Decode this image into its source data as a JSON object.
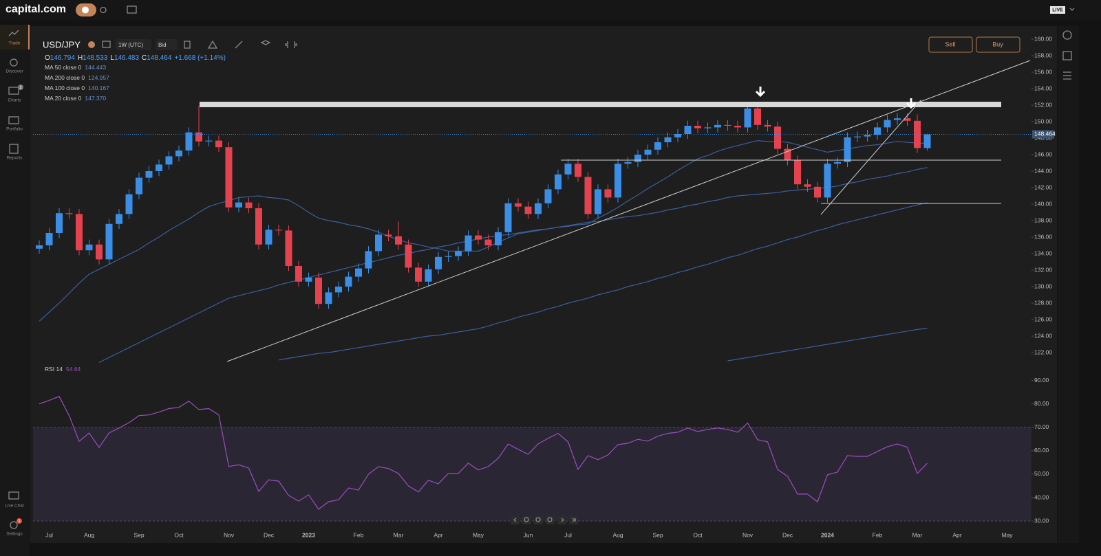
{
  "ui": {
    "logo": "capital.com",
    "live": "LIVE",
    "nav": [
      "Trade",
      "Discover",
      "Charts",
      "Portfolio",
      "Reports",
      "Live Chat",
      "Settings"
    ],
    "charts_badge": 2,
    "settings_badge": 1,
    "symbol": "USD/JPY",
    "interval": "1W (UTC)",
    "price_type": "Bid",
    "sell": "Sell",
    "buy": "Buy"
  },
  "chart_data": {
    "type": "candlestick",
    "categories": [
      null,
      "Jul",
      null,
      null,
      null,
      "Aug",
      null,
      null,
      null,
      null,
      "Sep",
      null,
      null,
      null,
      "Oct",
      null,
      null,
      null,
      null,
      "Nov",
      null,
      null,
      null,
      "Dec",
      null,
      null,
      null,
      "2023",
      null,
      null,
      null,
      null,
      "Feb",
      null,
      null,
      null,
      "Mar",
      null,
      null,
      null,
      "Apr",
      null,
      null,
      null,
      "May",
      null,
      null,
      null,
      null,
      "Jun",
      null,
      null,
      null,
      "Jul",
      null,
      null,
      null,
      null,
      "Aug",
      null,
      null,
      null,
      "Sep",
      null,
      null,
      null,
      "Oct",
      null,
      null,
      null,
      null,
      "Nov",
      null,
      null,
      null,
      "Dec",
      null,
      null,
      null,
      "2024",
      null,
      null,
      null,
      null,
      "Feb",
      null,
      null,
      null,
      "Mar",
      null,
      null,
      null,
      "Apr",
      null,
      null,
      null,
      null,
      "May"
    ],
    "open": [
      134.6,
      135.0,
      136.5,
      138.9,
      138.8,
      134.4,
      135.1,
      133.3,
      137.6,
      138.8,
      141.2,
      143.2,
      144.0,
      144.8,
      145.8,
      146.5,
      148.7,
      147.6,
      147.7,
      146.9,
      139.6,
      140.2,
      139.5,
      135.1,
      136.9,
      136.8,
      132.5,
      130.6,
      131.1,
      127.9,
      129.3,
      130.0,
      131.2,
      132.2,
      134.3,
      136.3,
      136.1,
      135.1,
      132.3,
      130.6,
      132.1,
      133.6,
      133.7,
      134.3,
      136.2,
      135.7,
      135.0,
      136.6,
      140.1,
      139.7,
      138.8,
      140.1,
      141.8,
      143.6,
      144.9,
      143.3,
      138.8,
      141.8,
      140.8,
      144.9,
      145.1,
      146.0,
      146.6,
      147.5,
      148.1,
      148.5,
      149.5,
      149.2,
      149.3,
      149.6,
      149.5,
      149.3,
      151.6,
      149.6,
      149.4,
      146.7,
      145.3,
      142.4,
      142.1,
      140.8,
      144.9,
      145.1,
      148.1,
      148.2,
      148.4,
      149.3,
      150.2,
      150.4,
      150.1,
      146.794,
      null,
      null,
      null,
      null,
      null,
      null,
      null,
      null
    ],
    "high": [
      135.6,
      137.1,
      139.5,
      139.5,
      139.4,
      135.7,
      135.7,
      138.2,
      139.4,
      141.8,
      143.8,
      144.6,
      145.4,
      146.4,
      147.1,
      149.3,
      151.9,
      148.3,
      148.3,
      147.5,
      140.8,
      140.8,
      140.1,
      137.5,
      137.5,
      137.4,
      133.1,
      131.7,
      131.7,
      129.9,
      130.6,
      131.8,
      132.8,
      134.9,
      136.9,
      136.9,
      137.9,
      135.7,
      132.9,
      132.7,
      134.2,
      134.3,
      134.9,
      136.8,
      136.8,
      136.3,
      137.2,
      140.7,
      140.7,
      140.3,
      140.7,
      142.4,
      144.2,
      145.5,
      145.5,
      143.9,
      142.4,
      142.4,
      145.5,
      145.7,
      146.6,
      147.2,
      148.1,
      148.7,
      149.1,
      150.1,
      150.1,
      149.9,
      150.2,
      150.2,
      150.1,
      151.9,
      151.9,
      150.2,
      150.0,
      147.3,
      145.9,
      143.0,
      142.7,
      145.5,
      145.7,
      148.7,
      148.8,
      149.0,
      149.9,
      150.8,
      151.0,
      151.0,
      150.9,
      148.533,
      null,
      null,
      null,
      null,
      null,
      null,
      null,
      null
    ],
    "low": [
      134.0,
      134.4,
      135.9,
      138.2,
      133.8,
      133.8,
      132.7,
      132.7,
      137.0,
      138.2,
      140.6,
      142.6,
      143.4,
      144.2,
      145.2,
      145.9,
      147.0,
      147.0,
      146.3,
      139.0,
      139.0,
      138.9,
      134.5,
      134.5,
      136.2,
      131.9,
      130.0,
      130.0,
      127.3,
      127.3,
      128.7,
      129.4,
      130.6,
      131.6,
      133.7,
      135.5,
      134.5,
      131.7,
      130.0,
      130.0,
      131.5,
      133.0,
      133.1,
      133.7,
      135.1,
      134.4,
      134.4,
      136.0,
      139.1,
      138.2,
      138.2,
      139.5,
      141.2,
      143.0,
      142.7,
      138.2,
      138.2,
      140.2,
      140.2,
      144.3,
      144.5,
      145.4,
      146.0,
      146.9,
      147.5,
      147.9,
      148.6,
      148.6,
      148.7,
      148.9,
      148.7,
      148.7,
      149.0,
      148.8,
      146.1,
      144.7,
      141.8,
      141.5,
      140.2,
      140.2,
      144.3,
      144.5,
      147.5,
      147.6,
      147.8,
      148.7,
      149.6,
      149.5,
      146.2,
      146.483,
      null,
      null,
      null,
      null,
      null,
      null,
      null,
      null
    ],
    "close": [
      135.0,
      136.5,
      138.9,
      138.8,
      134.4,
      135.1,
      133.3,
      137.6,
      138.8,
      141.2,
      143.2,
      144.0,
      144.8,
      145.8,
      146.5,
      148.7,
      147.6,
      147.7,
      146.9,
      139.6,
      140.2,
      139.5,
      135.1,
      136.9,
      136.8,
      132.5,
      130.6,
      131.1,
      127.9,
      129.3,
      130.0,
      131.2,
      132.2,
      134.3,
      136.3,
      136.1,
      135.1,
      132.3,
      130.6,
      132.1,
      133.6,
      133.7,
      134.3,
      136.2,
      135.7,
      135.0,
      136.6,
      140.1,
      139.7,
      138.8,
      140.1,
      141.8,
      143.6,
      144.9,
      143.3,
      138.8,
      141.8,
      140.8,
      144.9,
      145.1,
      146.0,
      146.6,
      147.5,
      148.1,
      148.5,
      149.5,
      149.2,
      149.3,
      149.6,
      149.5,
      149.3,
      151.6,
      149.6,
      149.4,
      146.7,
      145.3,
      142.4,
      142.1,
      140.8,
      144.9,
      145.1,
      148.1,
      148.2,
      148.4,
      149.3,
      150.2,
      150.4,
      150.1,
      146.8,
      148.464,
      null,
      null,
      null,
      null,
      null,
      null,
      null,
      null
    ],
    "colors": {
      "up": "#3a8ee6",
      "down": "#e4424f"
    },
    "ohlc_labels": [
      "O",
      "H",
      "L",
      "C"
    ],
    "change": "+1.668 (+1.14%)",
    "ylim": [
      121,
      161
    ],
    "yticks": [
      {
        "value": 122,
        "label": "122.00"
      },
      {
        "value": 124,
        "label": "124.00"
      },
      {
        "value": 126,
        "label": "126.00"
      },
      {
        "value": 128,
        "label": "128.00"
      },
      {
        "value": 130,
        "label": "130.00"
      },
      {
        "value": 132,
        "label": "132.00"
      },
      {
        "value": 134,
        "label": "134.00"
      },
      {
        "value": 136,
        "label": "136.00"
      },
      {
        "value": 138,
        "label": "138.00"
      },
      {
        "value": 140,
        "label": "140.00"
      },
      {
        "value": 142,
        "label": "142.00"
      },
      {
        "value": 144,
        "label": "144.00"
      },
      {
        "value": 146,
        "label": "146.00"
      },
      {
        "value": 148,
        "label": "148.00"
      },
      {
        "value": 150,
        "label": "150.00"
      },
      {
        "value": 152,
        "label": "152.00"
      },
      {
        "value": 154,
        "label": "154.00"
      },
      {
        "value": 156,
        "label": "156.00"
      },
      {
        "value": 158,
        "label": "158.00"
      },
      {
        "value": 160,
        "label": "160.00"
      }
    ],
    "series": [
      {
        "name": "MA 50 close 0",
        "color": "#3b5f9e",
        "values": [
          null,
          null,
          null,
          null,
          null,
          null,
          120.8,
          121.4,
          122.0,
          122.6,
          123.2,
          123.8,
          124.4,
          125.0,
          125.6,
          126.2,
          126.8,
          127.4,
          128.0,
          128.6,
          128.9,
          129.2,
          129.5,
          129.8,
          130.2,
          130.5,
          130.8,
          131.1,
          131.4,
          131.7,
          132.0,
          132.3,
          132.6,
          132.9,
          133.2,
          133.5,
          133.8,
          134.0,
          134.3,
          134.5,
          134.8,
          135.0,
          135.3,
          135.5,
          135.8,
          136.0,
          136.2,
          136.3,
          136.5,
          136.7,
          136.9,
          137.0,
          137.2,
          137.4,
          137.6,
          137.8,
          137.9,
          138.1,
          138.3,
          138.5,
          138.6,
          138.8,
          139.0,
          139.3,
          139.5,
          139.8,
          140.0,
          140.3,
          140.5,
          140.8,
          141.0,
          141.1,
          141.2,
          141.3,
          141.4,
          141.6,
          141.7,
          141.8,
          141.9,
          142.0,
          142.2,
          142.5,
          142.7,
          143.0,
          143.2,
          143.4,
          143.7,
          143.9,
          144.2,
          144.443,
          null,
          null,
          null,
          null,
          null,
          null,
          null,
          null
        ]
      },
      {
        "name": "MA 200 close 0",
        "color": "#3b5f9e",
        "values": [
          null,
          null,
          null,
          null,
          null,
          null,
          null,
          null,
          null,
          null,
          null,
          null,
          null,
          null,
          null,
          null,
          null,
          null,
          null,
          null,
          null,
          null,
          null,
          null,
          null,
          null,
          null,
          null,
          null,
          null,
          null,
          null,
          null,
          null,
          null,
          null,
          null,
          null,
          null,
          null,
          null,
          null,
          null,
          null,
          null,
          null,
          null,
          null,
          null,
          null,
          null,
          null,
          null,
          null,
          null,
          null,
          null,
          null,
          null,
          null,
          null,
          null,
          null,
          null,
          null,
          null,
          null,
          null,
          null,
          121.0,
          121.2,
          121.4,
          121.6,
          121.8,
          122.0,
          122.2,
          122.4,
          122.6,
          122.8,
          123.0,
          123.2,
          123.4,
          123.6,
          123.8,
          124.0,
          124.2,
          124.4,
          124.6,
          124.8,
          124.957,
          null,
          null,
          null,
          null,
          null,
          null,
          null,
          null
        ]
      },
      {
        "name": "MA 100 close 0",
        "color": "#3b5f9e",
        "values": [
          null,
          null,
          null,
          null,
          null,
          null,
          null,
          null,
          null,
          null,
          null,
          null,
          null,
          null,
          null,
          null,
          null,
          null,
          null,
          null,
          null,
          null,
          null,
          null,
          121.1,
          121.3,
          121.5,
          121.7,
          121.9,
          122.0,
          122.2,
          122.4,
          122.6,
          122.8,
          123.0,
          123.2,
          123.4,
          123.6,
          123.8,
          124.0,
          124.1,
          124.3,
          124.5,
          124.7,
          124.9,
          125.2,
          125.6,
          125.9,
          126.3,
          126.6,
          126.9,
          127.3,
          127.6,
          128.0,
          128.3,
          128.6,
          129.0,
          129.3,
          129.6,
          130.0,
          130.3,
          130.6,
          131.0,
          131.3,
          131.7,
          132.0,
          132.4,
          132.7,
          133.1,
          133.5,
          133.8,
          134.2,
          134.6,
          134.9,
          135.3,
          135.7,
          136.0,
          136.4,
          136.8,
          137.1,
          137.5,
          137.8,
          138.1,
          138.4,
          138.7,
          139.0,
          139.3,
          139.6,
          139.9,
          140.167,
          null,
          null,
          null,
          null,
          null,
          null,
          null,
          null
        ]
      },
      {
        "name": "MA 20 close 0",
        "color": "#3b5f9e",
        "values": [
          125.8,
          126.9,
          128.0,
          129.2,
          130.4,
          131.5,
          132.1,
          132.7,
          133.3,
          133.9,
          134.5,
          135.3,
          136.0,
          136.8,
          137.5,
          138.2,
          139.0,
          139.7,
          140.1,
          140.4,
          140.8,
          140.9,
          141.0,
          140.8,
          140.7,
          140.5,
          139.8,
          139.0,
          138.3,
          138.0,
          137.8,
          137.5,
          137.3,
          137.0,
          136.6,
          136.1,
          135.7,
          135.3,
          135.1,
          134.8,
          134.6,
          134.3,
          134.3,
          134.3,
          134.3,
          134.8,
          135.4,
          135.9,
          136.4,
          136.6,
          136.8,
          137.0,
          137.2,
          137.3,
          137.5,
          137.6,
          138.3,
          138.9,
          139.6,
          140.4,
          141.1,
          141.9,
          142.6,
          143.3,
          144.1,
          144.8,
          145.5,
          145.9,
          146.4,
          146.8,
          147.1,
          147.4,
          147.7,
          147.6,
          147.6,
          147.5,
          147.2,
          146.9,
          146.6,
          146.3,
          146.5,
          146.7,
          146.9,
          147.1,
          147.2,
          147.4,
          147.6,
          147.5,
          147.4,
          147.37,
          null,
          null,
          null,
          null,
          null,
          null,
          null,
          null
        ],
        "value_labels": [
          null,
          null,
          null,
          null,
          null,
          null,
          null,
          null,
          null,
          null,
          null,
          null,
          null,
          null,
          null,
          null,
          null,
          null,
          null,
          null,
          null,
          null,
          null,
          null,
          null,
          null,
          null,
          null,
          null,
          null,
          null,
          null,
          null,
          null,
          null,
          null,
          null,
          null,
          null,
          null,
          null,
          null,
          null,
          null,
          null,
          null,
          null,
          null,
          null,
          null,
          null,
          null,
          null,
          null,
          null,
          null,
          null,
          null,
          null,
          null,
          null,
          null,
          null,
          null,
          null,
          null,
          null,
          null,
          null,
          null,
          null,
          null,
          null,
          null,
          null,
          null,
          null,
          null,
          null,
          null,
          null,
          null,
          null,
          null,
          null,
          null,
          null,
          null,
          null,
          "147.370",
          null,
          null,
          null,
          null,
          null,
          null,
          null,
          null
        ]
      }
    ],
    "rsi": {
      "name": "RSI 14",
      "color": "#9a4fc0",
      "ylim": [
        26.5,
        94
      ],
      "band": [
        30,
        70
      ],
      "yticks": [
        {
          "value": 30,
          "label": "30.00"
        },
        {
          "value": 40,
          "label": "40.00"
        },
        {
          "value": 50,
          "label": "50.00"
        },
        {
          "value": 60,
          "label": "60.00"
        },
        {
          "value": 70,
          "label": "70.00"
        },
        {
          "value": 80,
          "label": "80.00"
        },
        {
          "value": 90,
          "label": "90.00"
        }
      ],
      "values": [
        80,
        81.5,
        83.2,
        75,
        64,
        67.6,
        61.4,
        67.6,
        69.7,
        72,
        75,
        75.3,
        76.5,
        78,
        78.5,
        81.2,
        77.6,
        78,
        75.3,
        53.3,
        54,
        52.6,
        42.6,
        47.6,
        47,
        40.9,
        38.5,
        41.2,
        35,
        38.2,
        39.1,
        44.1,
        43.2,
        50,
        53.2,
        52.4,
        50.3,
        45,
        42.4,
        47.4,
        45.9,
        50.3,
        50.3,
        54.7,
        51.8,
        53.2,
        56.8,
        62.9,
        60.6,
        58.5,
        62.9,
        65.3,
        67.4,
        63.8,
        52,
        57.9,
        56.2,
        58.2,
        62.6,
        63.2,
        64.9,
        64.1,
        66.2,
        67.4,
        67.9,
        69.7,
        68.2,
        69.1,
        69.7,
        69.1,
        67.9,
        71.8,
        64.7,
        63.8,
        52,
        49.1,
        41.5,
        41.5,
        38.2,
        49.7,
        50.9,
        57.9,
        57.6,
        57.6,
        59.7,
        61.7,
        62.9,
        61.5,
        50.3,
        54.64,
        null,
        null,
        null,
        null,
        null,
        null,
        null,
        null
      ]
    }
  }
}
